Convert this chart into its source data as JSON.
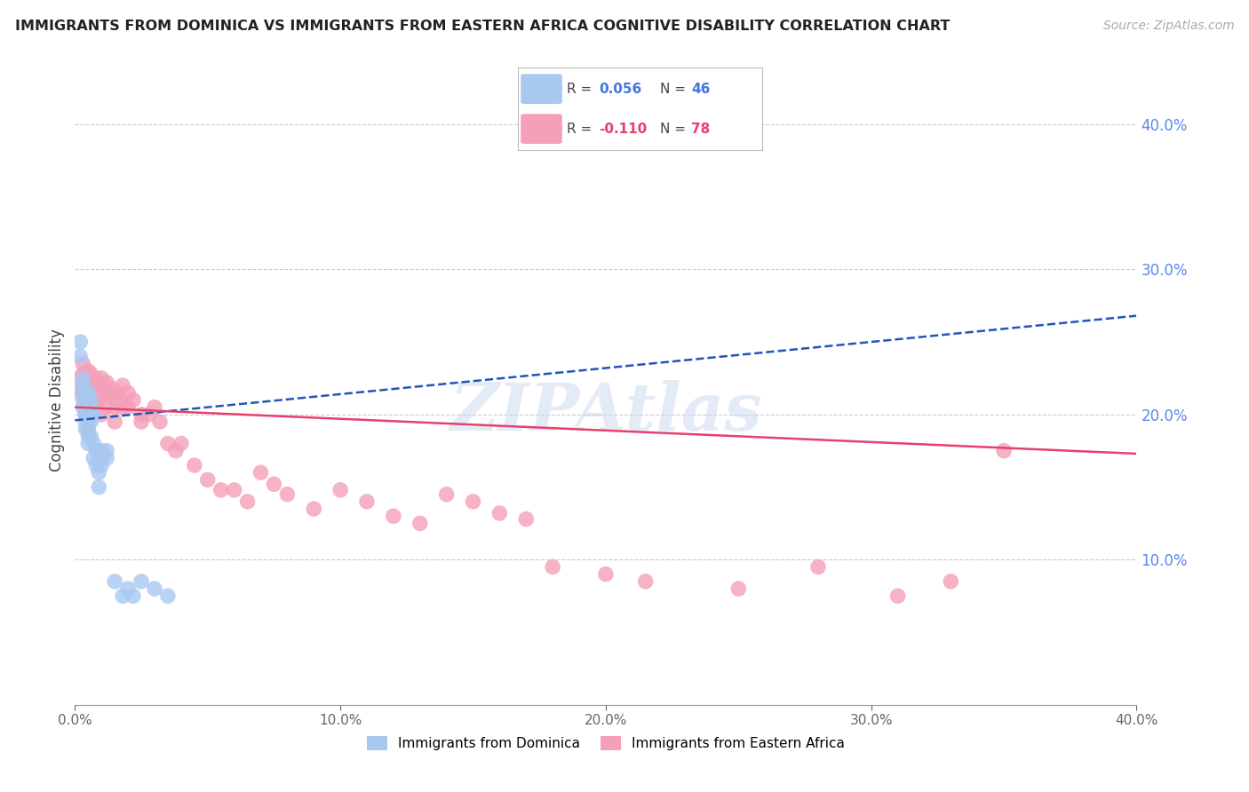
{
  "title": "IMMIGRANTS FROM DOMINICA VS IMMIGRANTS FROM EASTERN AFRICA COGNITIVE DISABILITY CORRELATION CHART",
  "source": "Source: ZipAtlas.com",
  "ylabel": "Cognitive Disability",
  "right_ytick_labels": [
    "40.0%",
    "30.0%",
    "20.0%",
    "10.0%"
  ],
  "right_ytick_vals": [
    0.4,
    0.3,
    0.2,
    0.1
  ],
  "xlim": [
    0.0,
    0.4
  ],
  "ylim": [
    0.0,
    0.42
  ],
  "xlabel_ticks": [
    "0.0%",
    "10.0%",
    "20.0%",
    "30.0%",
    "40.0%"
  ],
  "xlabel_tick_vals": [
    0.0,
    0.1,
    0.2,
    0.3,
    0.4
  ],
  "blue_color": "#A8C8F0",
  "pink_color": "#F4A0B8",
  "blue_line_color": "#2255BB",
  "pink_line_color": "#E8406A",
  "watermark": "ZIPAtlas",
  "blue_line_x0": 0.0,
  "blue_line_y0": 0.196,
  "blue_line_x1": 0.4,
  "blue_line_y1": 0.268,
  "pink_line_x0": 0.0,
  "pink_line_y0": 0.205,
  "pink_line_x1": 0.4,
  "pink_line_y1": 0.173,
  "dominica_x": [
    0.002,
    0.002,
    0.003,
    0.003,
    0.003,
    0.003,
    0.003,
    0.004,
    0.004,
    0.004,
    0.004,
    0.004,
    0.004,
    0.005,
    0.005,
    0.005,
    0.005,
    0.005,
    0.005,
    0.005,
    0.005,
    0.005,
    0.006,
    0.006,
    0.006,
    0.006,
    0.006,
    0.007,
    0.007,
    0.007,
    0.008,
    0.008,
    0.009,
    0.009,
    0.01,
    0.01,
    0.01,
    0.012,
    0.012,
    0.015,
    0.018,
    0.02,
    0.022,
    0.025,
    0.03,
    0.035
  ],
  "dominica_y": [
    0.25,
    0.24,
    0.225,
    0.22,
    0.215,
    0.21,
    0.205,
    0.21,
    0.21,
    0.205,
    0.2,
    0.195,
    0.19,
    0.215,
    0.215,
    0.21,
    0.205,
    0.2,
    0.2,
    0.195,
    0.185,
    0.18,
    0.21,
    0.205,
    0.2,
    0.195,
    0.185,
    0.2,
    0.18,
    0.17,
    0.175,
    0.165,
    0.16,
    0.15,
    0.175,
    0.17,
    0.165,
    0.175,
    0.17,
    0.085,
    0.075,
    0.08,
    0.075,
    0.085,
    0.08,
    0.075
  ],
  "eastern_africa_x": [
    0.002,
    0.002,
    0.003,
    0.003,
    0.003,
    0.004,
    0.004,
    0.004,
    0.004,
    0.005,
    0.005,
    0.005,
    0.005,
    0.005,
    0.005,
    0.006,
    0.006,
    0.006,
    0.007,
    0.007,
    0.007,
    0.008,
    0.008,
    0.008,
    0.009,
    0.009,
    0.01,
    0.01,
    0.01,
    0.01,
    0.011,
    0.012,
    0.012,
    0.013,
    0.014,
    0.015,
    0.015,
    0.015,
    0.016,
    0.017,
    0.018,
    0.018,
    0.02,
    0.02,
    0.022,
    0.025,
    0.025,
    0.028,
    0.03,
    0.032,
    0.035,
    0.038,
    0.04,
    0.045,
    0.05,
    0.055,
    0.06,
    0.065,
    0.07,
    0.075,
    0.08,
    0.09,
    0.1,
    0.11,
    0.12,
    0.13,
    0.14,
    0.15,
    0.16,
    0.17,
    0.18,
    0.2,
    0.215,
    0.25,
    0.28,
    0.31,
    0.33,
    0.35
  ],
  "eastern_africa_y": [
    0.225,
    0.215,
    0.235,
    0.228,
    0.22,
    0.225,
    0.218,
    0.21,
    0.2,
    0.23,
    0.222,
    0.215,
    0.208,
    0.2,
    0.19,
    0.228,
    0.22,
    0.212,
    0.222,
    0.215,
    0.205,
    0.225,
    0.218,
    0.205,
    0.22,
    0.21,
    0.225,
    0.218,
    0.212,
    0.2,
    0.215,
    0.222,
    0.205,
    0.215,
    0.218,
    0.212,
    0.205,
    0.195,
    0.215,
    0.21,
    0.22,
    0.205,
    0.215,
    0.205,
    0.21,
    0.2,
    0.195,
    0.2,
    0.205,
    0.195,
    0.18,
    0.175,
    0.18,
    0.165,
    0.155,
    0.148,
    0.148,
    0.14,
    0.16,
    0.152,
    0.145,
    0.135,
    0.148,
    0.14,
    0.13,
    0.125,
    0.145,
    0.14,
    0.132,
    0.128,
    0.095,
    0.09,
    0.085,
    0.08,
    0.095,
    0.075,
    0.085,
    0.175
  ]
}
